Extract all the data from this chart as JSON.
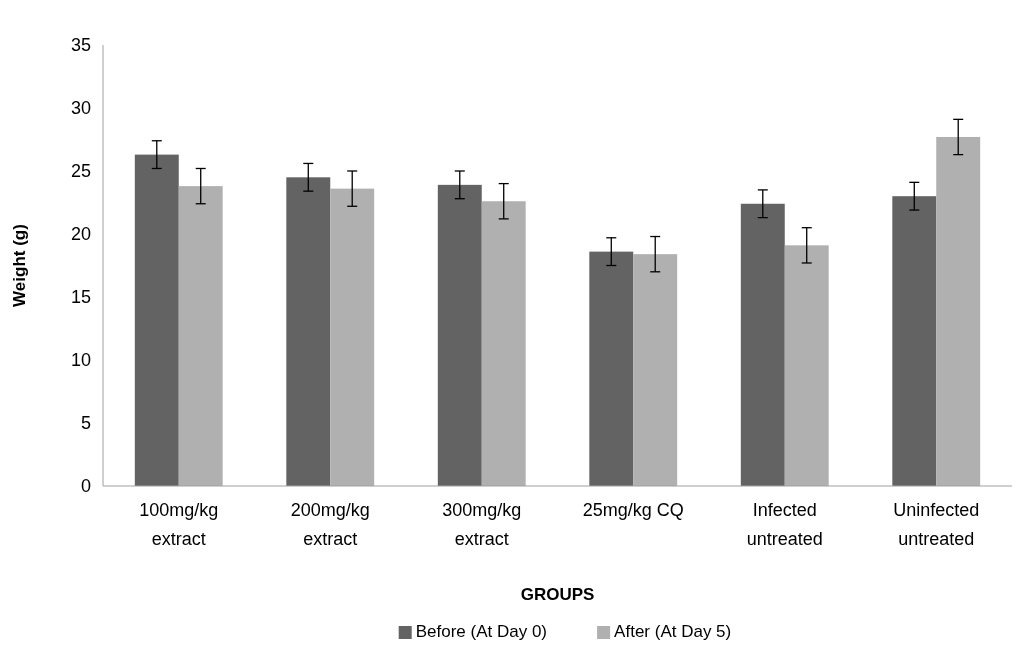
{
  "chart_data": {
    "type": "bar",
    "xlabel": "GROUPS",
    "ylabel": "Weight (g)",
    "categories": [
      "100mg/kg extract",
      "200mg/kg extract",
      "300mg/kg extract",
      "25mg/kg CQ",
      "Infected untreated",
      "Uninfected untreated"
    ],
    "series": [
      {
        "name": "Before (At Day 0)",
        "color": "#636363",
        "values": [
          26.3,
          24.5,
          23.9,
          18.6,
          22.4,
          23.0
        ],
        "errors": [
          1.1,
          1.1,
          1.1,
          1.1,
          1.1,
          1.1
        ]
      },
      {
        "name": "After (At Day 5)",
        "color": "#b0b0b0",
        "values": [
          23.8,
          23.6,
          22.6,
          18.4,
          19.1,
          27.7
        ],
        "errors": [
          1.4,
          1.4,
          1.4,
          1.4,
          1.4,
          1.4
        ]
      }
    ],
    "ylim": [
      0,
      35
    ],
    "yticks": [
      0,
      5,
      10,
      15,
      20,
      25,
      30,
      35
    ],
    "grid": false,
    "legend": "bottom"
  }
}
